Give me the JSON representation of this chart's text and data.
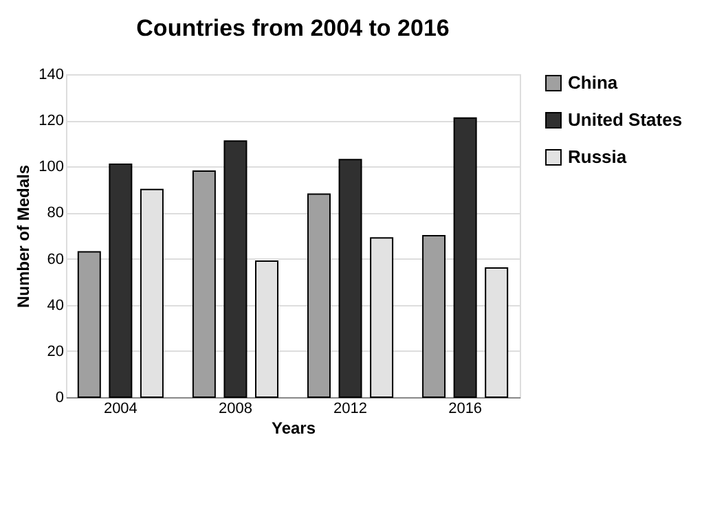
{
  "chart_data": {
    "type": "bar",
    "title": "Countries from 2004 to 2016",
    "xlabel": "Years",
    "ylabel": "Number of Medals",
    "categories": [
      "2004",
      "2008",
      "2012",
      "2016"
    ],
    "series": [
      {
        "name": "China",
        "color": "#a0a0a0",
        "values": [
          63,
          98,
          88,
          70
        ]
      },
      {
        "name": "United States",
        "color": "#303030",
        "values": [
          101,
          111,
          103,
          121
        ]
      },
      {
        "name": "Russia",
        "color": "#e2e2e2",
        "values": [
          90,
          59,
          69,
          56
        ]
      }
    ],
    "ylim": [
      0,
      140
    ],
    "yticks": [
      0,
      20,
      40,
      60,
      80,
      100,
      120,
      140
    ],
    "grid": "y",
    "legend": "right"
  }
}
